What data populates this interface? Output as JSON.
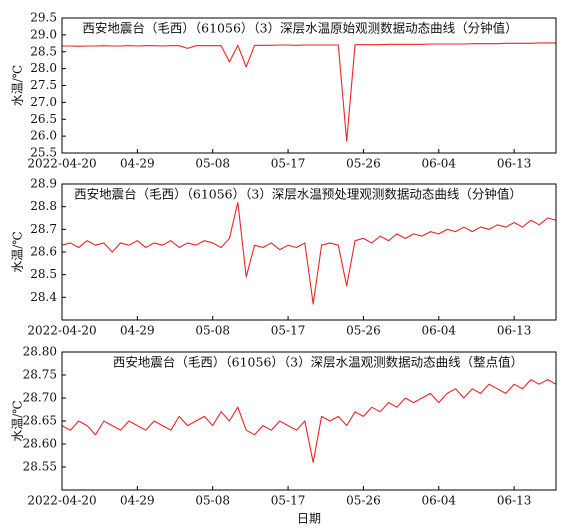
{
  "chart_data": [
    {
      "type": "line",
      "title": "西安地震台（毛西）（61056）（3）深层水温原始观测数据动态曲线（分钟值）",
      "y_label": "水温/℃",
      "x": [
        "2022-04-20",
        "2022-04-21",
        "2022-04-22",
        "2022-04-23",
        "2022-04-24",
        "2022-04-25",
        "2022-04-26",
        "2022-04-27",
        "2022-04-28",
        "2022-04-29",
        "2022-04-30",
        "2022-05-01",
        "2022-05-02",
        "2022-05-03",
        "2022-05-04",
        "2022-05-05",
        "2022-05-06",
        "2022-05-07",
        "2022-05-08",
        "2022-05-09",
        "2022-05-10",
        "2022-05-11",
        "2022-05-12",
        "2022-05-13",
        "2022-05-14",
        "2022-05-15",
        "2022-05-16",
        "2022-05-17",
        "2022-05-18",
        "2022-05-19",
        "2022-05-20",
        "2022-05-21",
        "2022-05-22",
        "2022-05-23",
        "2022-05-24",
        "2022-05-25",
        "2022-05-26",
        "2022-05-27",
        "2022-05-28",
        "2022-05-29",
        "2022-05-30",
        "2022-05-31",
        "2022-06-01",
        "2022-06-02",
        "2022-06-03",
        "2022-06-04",
        "2022-06-05",
        "2022-06-06",
        "2022-06-07",
        "2022-06-08",
        "2022-06-09",
        "2022-06-10",
        "2022-06-11",
        "2022-06-12",
        "2022-06-13",
        "2022-06-14",
        "2022-06-15",
        "2022-06-16",
        "2022-06-17",
        "2022-06-18"
      ],
      "series": [
        {
          "color": "#e8262a",
          "values": [
            28.67,
            28.67,
            28.66,
            28.67,
            28.67,
            28.68,
            28.67,
            28.67,
            28.68,
            28.67,
            28.68,
            28.68,
            28.67,
            28.68,
            28.68,
            28.6,
            28.68,
            28.68,
            28.68,
            28.68,
            28.2,
            28.69,
            28.05,
            28.69,
            28.69,
            28.69,
            28.7,
            28.7,
            28.69,
            28.7,
            28.7,
            28.7,
            28.7,
            28.7,
            25.85,
            28.71,
            28.71,
            28.71,
            28.71,
            28.72,
            28.72,
            28.72,
            28.72,
            28.72,
            28.73,
            28.73,
            28.73,
            28.73,
            28.73,
            28.74,
            28.74,
            28.74,
            28.74,
            28.75,
            28.75,
            28.75,
            28.75,
            28.76,
            28.76,
            28.76
          ]
        }
      ],
      "xlim": [
        "2022-04-20",
        "2022-06-18"
      ],
      "xticks": [
        "2022-04-20",
        {
          "value": "2022-04-29",
          "label": "04-29"
        },
        {
          "value": "2022-05-08",
          "label": "05-08"
        },
        {
          "value": "2022-05-17",
          "label": "05-17"
        },
        {
          "value": "2022-05-26",
          "label": "05-26"
        },
        {
          "value": "2022-06-04",
          "label": "06-04"
        },
        {
          "value": "2022-06-13",
          "label": "06-13"
        }
      ],
      "ylim": [
        25.5,
        29.5
      ],
      "yticks": [
        25.5,
        {
          "value": 26,
          "label": "26.0"
        },
        26.5,
        {
          "value": 27,
          "label": "27.0"
        },
        27.5,
        {
          "value": 28,
          "label": "28.0"
        },
        28.5,
        {
          "value": 29,
          "label": "29.0"
        },
        29.5
      ]
    },
    {
      "type": "line",
      "title": "西安地震台（毛西）（61056）（3）深层水温预处理观测数据动态曲线（分钟值）",
      "y_label": "水温/℃",
      "x": [
        "2022-04-20",
        "2022-04-21",
        "2022-04-22",
        "2022-04-23",
        "2022-04-24",
        "2022-04-25",
        "2022-04-26",
        "2022-04-27",
        "2022-04-28",
        "2022-04-29",
        "2022-04-30",
        "2022-05-01",
        "2022-05-02",
        "2022-05-03",
        "2022-05-04",
        "2022-05-05",
        "2022-05-06",
        "2022-05-07",
        "2022-05-08",
        "2022-05-09",
        "2022-05-10",
        "2022-05-11",
        "2022-05-12",
        "2022-05-13",
        "2022-05-14",
        "2022-05-15",
        "2022-05-16",
        "2022-05-17",
        "2022-05-18",
        "2022-05-19",
        "2022-05-20",
        "2022-05-21",
        "2022-05-22",
        "2022-05-23",
        "2022-05-24",
        "2022-05-25",
        "2022-05-26",
        "2022-05-27",
        "2022-05-28",
        "2022-05-29",
        "2022-05-30",
        "2022-05-31",
        "2022-06-01",
        "2022-06-02",
        "2022-06-03",
        "2022-06-04",
        "2022-06-05",
        "2022-06-06",
        "2022-06-07",
        "2022-06-08",
        "2022-06-09",
        "2022-06-10",
        "2022-06-11",
        "2022-06-12",
        "2022-06-13",
        "2022-06-14",
        "2022-06-15",
        "2022-06-16",
        "2022-06-17",
        "2022-06-18"
      ],
      "series": [
        {
          "color": "#e8262a",
          "values": [
            28.63,
            28.64,
            28.62,
            28.65,
            28.63,
            28.64,
            28.6,
            28.64,
            28.63,
            28.65,
            28.62,
            28.64,
            28.63,
            28.65,
            28.62,
            28.64,
            28.63,
            28.65,
            28.64,
            28.62,
            28.66,
            28.82,
            28.49,
            28.63,
            28.62,
            28.64,
            28.61,
            28.63,
            28.62,
            28.64,
            28.37,
            28.63,
            28.64,
            28.63,
            28.45,
            28.65,
            28.66,
            28.64,
            28.67,
            28.65,
            28.68,
            28.66,
            28.68,
            28.67,
            28.69,
            28.68,
            28.7,
            28.69,
            28.71,
            28.69,
            28.71,
            28.7,
            28.72,
            28.71,
            28.73,
            28.71,
            28.74,
            28.72,
            28.75,
            28.74
          ]
        }
      ],
      "xlim": [
        "2022-04-20",
        "2022-06-18"
      ],
      "xticks": [
        "2022-04-20",
        {
          "value": "2022-04-29",
          "label": "04-29"
        },
        {
          "value": "2022-05-08",
          "label": "05-08"
        },
        {
          "value": "2022-05-17",
          "label": "05-17"
        },
        {
          "value": "2022-05-26",
          "label": "05-26"
        },
        {
          "value": "2022-06-04",
          "label": "06-04"
        },
        {
          "value": "2022-06-13",
          "label": "06-13"
        }
      ],
      "ylim": [
        28.3,
        28.9
      ],
      "yticks": [
        28.4,
        28.5,
        28.6,
        28.7,
        28.8,
        28.9
      ]
    },
    {
      "type": "line",
      "title": "西安地震台（毛西）（61056）（3）深层水温观测数据动态曲线（整点值）",
      "y_label": "水温/℃",
      "x_label": "日期",
      "x": [
        "2022-04-20",
        "2022-04-21",
        "2022-04-22",
        "2022-04-23",
        "2022-04-24",
        "2022-04-25",
        "2022-04-26",
        "2022-04-27",
        "2022-04-28",
        "2022-04-29",
        "2022-04-30",
        "2022-05-01",
        "2022-05-02",
        "2022-05-03",
        "2022-05-04",
        "2022-05-05",
        "2022-05-06",
        "2022-05-07",
        "2022-05-08",
        "2022-05-09",
        "2022-05-10",
        "2022-05-11",
        "2022-05-12",
        "2022-05-13",
        "2022-05-14",
        "2022-05-15",
        "2022-05-16",
        "2022-05-17",
        "2022-05-18",
        "2022-05-19",
        "2022-05-20",
        "2022-05-21",
        "2022-05-22",
        "2022-05-23",
        "2022-05-24",
        "2022-05-25",
        "2022-05-26",
        "2022-05-27",
        "2022-05-28",
        "2022-05-29",
        "2022-05-30",
        "2022-05-31",
        "2022-06-01",
        "2022-06-02",
        "2022-06-03",
        "2022-06-04",
        "2022-06-05",
        "2022-06-06",
        "2022-06-07",
        "2022-06-08",
        "2022-06-09",
        "2022-06-10",
        "2022-06-11",
        "2022-06-12",
        "2022-06-13",
        "2022-06-14",
        "2022-06-15",
        "2022-06-16",
        "2022-06-17",
        "2022-06-18"
      ],
      "series": [
        {
          "color": "#e8262a",
          "values": [
            28.64,
            28.63,
            28.65,
            28.64,
            28.62,
            28.65,
            28.64,
            28.63,
            28.65,
            28.64,
            28.63,
            28.65,
            28.64,
            28.63,
            28.66,
            28.64,
            28.65,
            28.66,
            28.64,
            28.67,
            28.65,
            28.68,
            28.63,
            28.62,
            28.64,
            28.63,
            28.65,
            28.64,
            28.63,
            28.65,
            28.56,
            28.66,
            28.65,
            28.66,
            28.64,
            28.67,
            28.66,
            28.68,
            28.67,
            28.69,
            28.68,
            28.7,
            28.69,
            28.7,
            28.71,
            28.69,
            28.71,
            28.72,
            28.7,
            28.72,
            28.71,
            28.73,
            28.72,
            28.71,
            28.73,
            28.72,
            28.74,
            28.73,
            28.74,
            28.73
          ]
        }
      ],
      "xlim": [
        "2022-04-20",
        "2022-06-18"
      ],
      "xticks": [
        "2022-04-20",
        {
          "value": "2022-04-29",
          "label": "04-29"
        },
        {
          "value": "2022-05-08",
          "label": "05-08"
        },
        {
          "value": "2022-05-17",
          "label": "05-17"
        },
        {
          "value": "2022-05-26",
          "label": "05-26"
        },
        {
          "value": "2022-06-04",
          "label": "06-04"
        },
        {
          "value": "2022-06-13",
          "label": "06-13"
        }
      ],
      "ylim": [
        28.5,
        28.8
      ],
      "yticks": [
        28.55,
        {
          "value": 28.6,
          "label": "28.60"
        },
        28.65,
        {
          "value": 28.7,
          "label": "28.70"
        },
        28.75,
        {
          "value": 28.8,
          "label": "28.80"
        }
      ]
    }
  ]
}
